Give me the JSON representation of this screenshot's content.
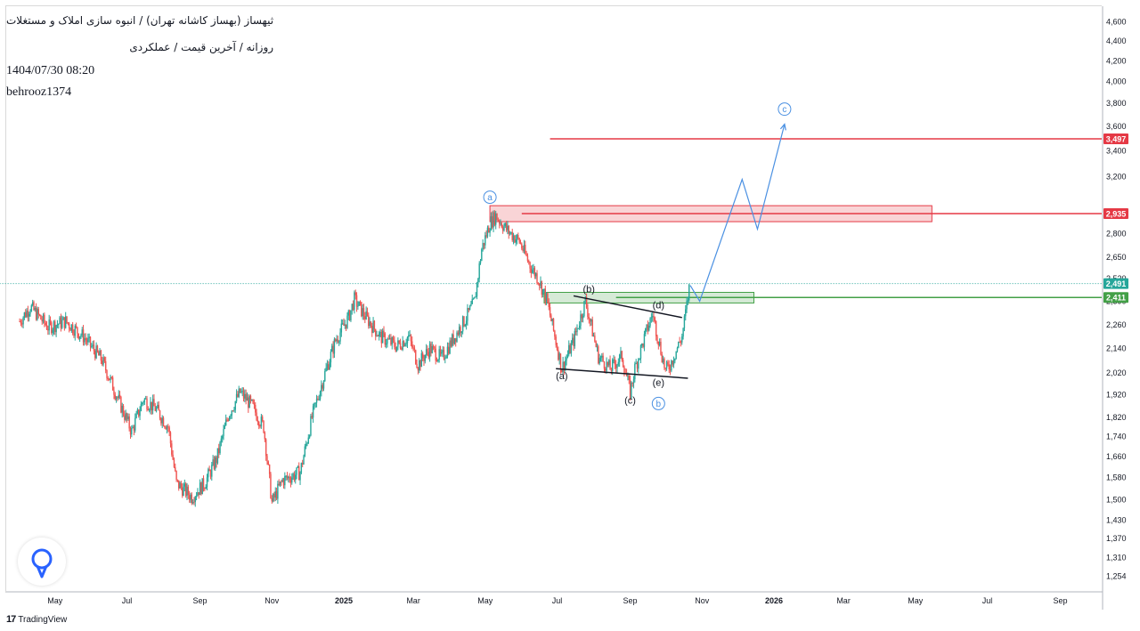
{
  "header": {
    "title": "ثیهساز (بهساز کاشانه تهران) / انبوه سازی املاک و مستغلات",
    "subtitle": "روزانه / آخرین قیمت / عملکردی",
    "datetime": "1404/07/30 08:20",
    "author": "behrooz1374"
  },
  "footer": {
    "brand": "TradingView",
    "brand_mark": "17"
  },
  "colors": {
    "up": "#26a69a",
    "down": "#ef5350",
    "resistance": "#e53945",
    "support": "#43a047",
    "wave": "#4a90e2",
    "pattern_line": "#131722"
  },
  "chart_data": {
    "type": "candlestick",
    "scale": "log",
    "x_axis": {
      "ticks": [
        {
          "label": "May",
          "date": "2024-05-01"
        },
        {
          "label": "Jul",
          "date": "2024-07-01"
        },
        {
          "label": "Sep",
          "date": "2024-09-01"
        },
        {
          "label": "Nov",
          "date": "2024-11-01"
        },
        {
          "label": "2025",
          "date": "2025-01-01"
        },
        {
          "label": "Mar",
          "date": "2025-03-01"
        },
        {
          "label": "May",
          "date": "2025-05-01"
        },
        {
          "label": "Jul",
          "date": "2025-07-01"
        },
        {
          "label": "Sep",
          "date": "2025-09-01"
        },
        {
          "label": "Nov",
          "date": "2025-11-01"
        },
        {
          "label": "2026",
          "date": "2026-01-01"
        },
        {
          "label": "Mar",
          "date": "2026-03-01"
        },
        {
          "label": "May",
          "date": "2026-05-01"
        },
        {
          "label": "Jul",
          "date": "2026-07-01"
        },
        {
          "label": "Sep",
          "date": "2026-09-01"
        }
      ]
    },
    "y_axis": {
      "ticks": [
        1254,
        1310,
        1370,
        1430,
        1500,
        1580,
        1660,
        1740,
        1820,
        1920,
        2020,
        2140,
        2260,
        2390,
        2520,
        2650,
        2800,
        2950,
        3200,
        3400,
        3600,
        3800,
        4000,
        4200,
        4400,
        4600
      ],
      "tick_labels": [
        "1,254",
        "1,310",
        "1,370",
        "1,430",
        "1,500",
        "1,580",
        "1,660",
        "1,740",
        "1,820",
        "1,920",
        "2,020",
        "2,140",
        "2,260",
        "2,390",
        "2,520",
        "2,650",
        "2,800",
        "2,950",
        "3,200",
        "3,400",
        "3,600",
        "3,800",
        "4,000",
        "4,200",
        "4,400",
        "4,600"
      ]
    },
    "price_path": [
      {
        "date": "2024-04-01",
        "price": 2280
      },
      {
        "date": "2024-04-10",
        "price": 2360
      },
      {
        "date": "2024-04-25",
        "price": 2250
      },
      {
        "date": "2024-05-10",
        "price": 2280
      },
      {
        "date": "2024-05-25",
        "price": 2200
      },
      {
        "date": "2024-06-10",
        "price": 2080
      },
      {
        "date": "2024-06-25",
        "price": 1880
      },
      {
        "date": "2024-07-05",
        "price": 1760
      },
      {
        "date": "2024-07-15",
        "price": 1900
      },
      {
        "date": "2024-07-25",
        "price": 1860
      },
      {
        "date": "2024-08-05",
        "price": 1780
      },
      {
        "date": "2024-08-12",
        "price": 1560
      },
      {
        "date": "2024-08-25",
        "price": 1510
      },
      {
        "date": "2024-09-05",
        "price": 1560
      },
      {
        "date": "2024-09-15",
        "price": 1650
      },
      {
        "date": "2024-09-25",
        "price": 1830
      },
      {
        "date": "2024-10-05",
        "price": 1930
      },
      {
        "date": "2024-10-15",
        "price": 1870
      },
      {
        "date": "2024-10-25",
        "price": 1780
      },
      {
        "date": "2024-11-01",
        "price": 1490
      },
      {
        "date": "2024-11-10",
        "price": 1570
      },
      {
        "date": "2024-11-25",
        "price": 1600
      },
      {
        "date": "2024-12-05",
        "price": 1820
      },
      {
        "date": "2024-12-15",
        "price": 2000
      },
      {
        "date": "2024-12-25",
        "price": 2180
      },
      {
        "date": "2025-01-05",
        "price": 2300
      },
      {
        "date": "2025-01-10",
        "price": 2400
      },
      {
        "date": "2025-01-20",
        "price": 2300
      },
      {
        "date": "2025-02-01",
        "price": 2200
      },
      {
        "date": "2025-02-15",
        "price": 2150
      },
      {
        "date": "2025-02-25",
        "price": 2200
      },
      {
        "date": "2025-03-05",
        "price": 2060
      },
      {
        "date": "2025-03-15",
        "price": 2140
      },
      {
        "date": "2025-03-25",
        "price": 2090
      },
      {
        "date": "2025-04-05",
        "price": 2200
      },
      {
        "date": "2025-04-15",
        "price": 2300
      },
      {
        "date": "2025-04-22",
        "price": 2390
      },
      {
        "date": "2025-04-28",
        "price": 2700
      },
      {
        "date": "2025-05-05",
        "price": 2870
      },
      {
        "date": "2025-05-10",
        "price": 2920
      },
      {
        "date": "2025-05-20",
        "price": 2820
      },
      {
        "date": "2025-05-30",
        "price": 2750
      },
      {
        "date": "2025-06-08",
        "price": 2600
      },
      {
        "date": "2025-06-15",
        "price": 2520
      },
      {
        "date": "2025-06-22",
        "price": 2400
      },
      {
        "date": "2025-07-02",
        "price": 2120
      },
      {
        "date": "2025-07-05",
        "price": 2040
      },
      {
        "date": "2025-07-15",
        "price": 2180
      },
      {
        "date": "2025-07-25",
        "price": 2390
      },
      {
        "date": "2025-08-05",
        "price": 2100
      },
      {
        "date": "2025-08-15",
        "price": 2040
      },
      {
        "date": "2025-08-25",
        "price": 2100
      },
      {
        "date": "2025-09-01",
        "price": 1930
      },
      {
        "date": "2025-09-05",
        "price": 2040
      },
      {
        "date": "2025-09-15",
        "price": 2230
      },
      {
        "date": "2025-09-20",
        "price": 2320
      },
      {
        "date": "2025-10-01",
        "price": 2030
      },
      {
        "date": "2025-10-05",
        "price": 2060
      },
      {
        "date": "2025-10-15",
        "price": 2200
      },
      {
        "date": "2025-10-20",
        "price": 2410
      },
      {
        "date": "2025-10-22",
        "price": 2520
      }
    ],
    "levels": [
      {
        "label": "3,497",
        "value": 3497,
        "color": "#e53945",
        "start_date": "2025-06-25"
      },
      {
        "label": "2,935",
        "value": 2935,
        "color": "#e53945",
        "start_date": "2025-06-01"
      },
      {
        "label": "2,491",
        "value": 2491,
        "color": "#26a69a",
        "start_date": "2024-03-15",
        "style": "dotted"
      },
      {
        "label": "2,411",
        "value": 2411,
        "color": "#43a047",
        "start_date": "2025-08-20"
      }
    ],
    "zones": [
      {
        "kind": "resistance",
        "from_date": "2025-05-05",
        "to_date": "2026-05-15",
        "low": 2880,
        "high": 2990,
        "color": "#e53945"
      },
      {
        "kind": "support",
        "from_date": "2025-06-20",
        "to_date": "2025-12-15",
        "low": 2380,
        "high": 2440,
        "color": "#43a047"
      }
    ],
    "pattern_lines": [
      {
        "from": {
          "date": "2025-07-15",
          "price": 2420
        },
        "to": {
          "date": "2025-10-15",
          "price": 2300
        }
      },
      {
        "from": {
          "date": "2025-06-30",
          "price": 2040
        },
        "to": {
          "date": "2025-10-20",
          "price": 1995
        }
      }
    ],
    "projection": [
      {
        "date": "2025-10-22",
        "price": 2480
      },
      {
        "date": "2025-10-30",
        "price": 2390
      },
      {
        "date": "2025-12-05",
        "price": 3180
      },
      {
        "date": "2025-12-18",
        "price": 2830
      },
      {
        "date": "2026-01-10",
        "price": 3620
      }
    ],
    "annotations": [
      {
        "text": "a",
        "circled": true,
        "date": "2025-05-05",
        "price": 3050
      },
      {
        "text": "b",
        "circled": true,
        "date": "2025-09-25",
        "price": 1880
      },
      {
        "text": "c",
        "circled": true,
        "date": "2026-01-10",
        "price": 3750
      },
      {
        "text": "(a)",
        "circled": false,
        "date": "2025-07-05",
        "price": 1990
      },
      {
        "text": "(b)",
        "circled": false,
        "date": "2025-07-28",
        "price": 2440
      },
      {
        "text": "(c)",
        "circled": false,
        "date": "2025-09-01",
        "price": 1880
      },
      {
        "text": "(d)",
        "circled": false,
        "date": "2025-09-25",
        "price": 2350
      },
      {
        "text": "(e)",
        "circled": false,
        "date": "2025-09-25",
        "price": 1960
      }
    ]
  }
}
